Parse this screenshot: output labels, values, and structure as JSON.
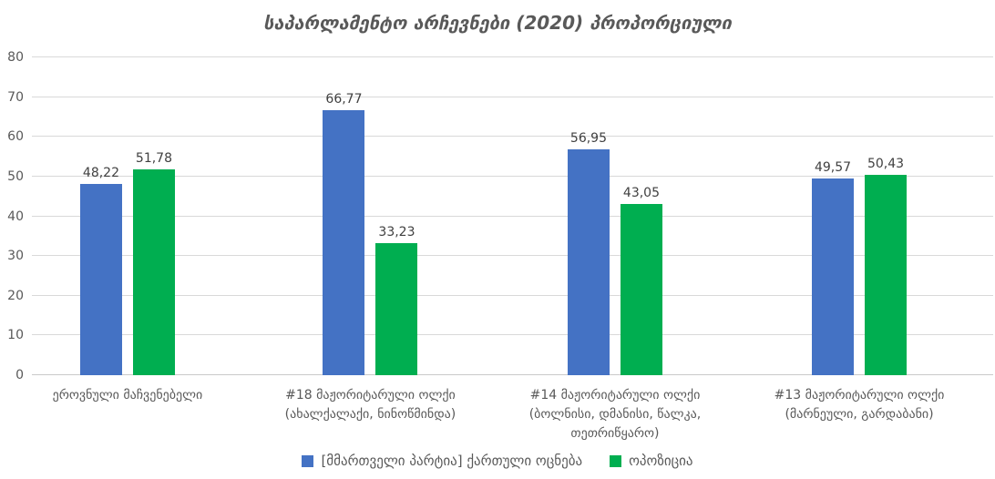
{
  "chart_data": {
    "type": "bar",
    "title": "საპარლამენტო არჩევნები (2020) პროპორციული",
    "xlabel": "",
    "ylabel": "",
    "ylim": [
      0,
      80
    ],
    "yticks": [
      0,
      10,
      20,
      30,
      40,
      50,
      60,
      70,
      80
    ],
    "grid": true,
    "legend_position": "bottom",
    "decimal_separator": ",",
    "categories": [
      "ეროვნული მაჩვენებელი",
      "#18 მაჟორიტარული ოლქი (ახალქალაქი, ნინოწმინდა)",
      "#14 მაჟორიტარული ოლქი (ბოლნისი, დმანისი, წალკა, თეთრიწყარო)",
      "#13 მაჟორიტარული ოლქი (მარნეული, გარდაბანი)"
    ],
    "category_lines": [
      [
        "ეროვნული მაჩვენებელი"
      ],
      [
        "#18 მაჟორიტარული ოლქი",
        "(ახალქალაქი, ნინოწმინდა)"
      ],
      [
        "#14 მაჟორიტარული ოლქი",
        "(ბოლნისი, დმანისი, წალკა,",
        "თეთრიწყარო)"
      ],
      [
        "#13 მაჟორიტარული ოლქი",
        "(მარნეული, გარდაბანი)"
      ]
    ],
    "series": [
      {
        "name": "[მმართველი პარტია] ქართული ოცნება",
        "color": "#4472C4",
        "values": [
          48.22,
          66.77,
          56.95,
          49.57
        ],
        "labels": [
          "48,22",
          "66,77",
          "56,95",
          "49,57"
        ]
      },
      {
        "name": "ოპოზიცია",
        "color": "#00AE50",
        "values": [
          51.78,
          33.23,
          43.05,
          50.43
        ],
        "labels": [
          "51,78",
          "33,23",
          "43,05",
          "50,43"
        ]
      }
    ]
  }
}
